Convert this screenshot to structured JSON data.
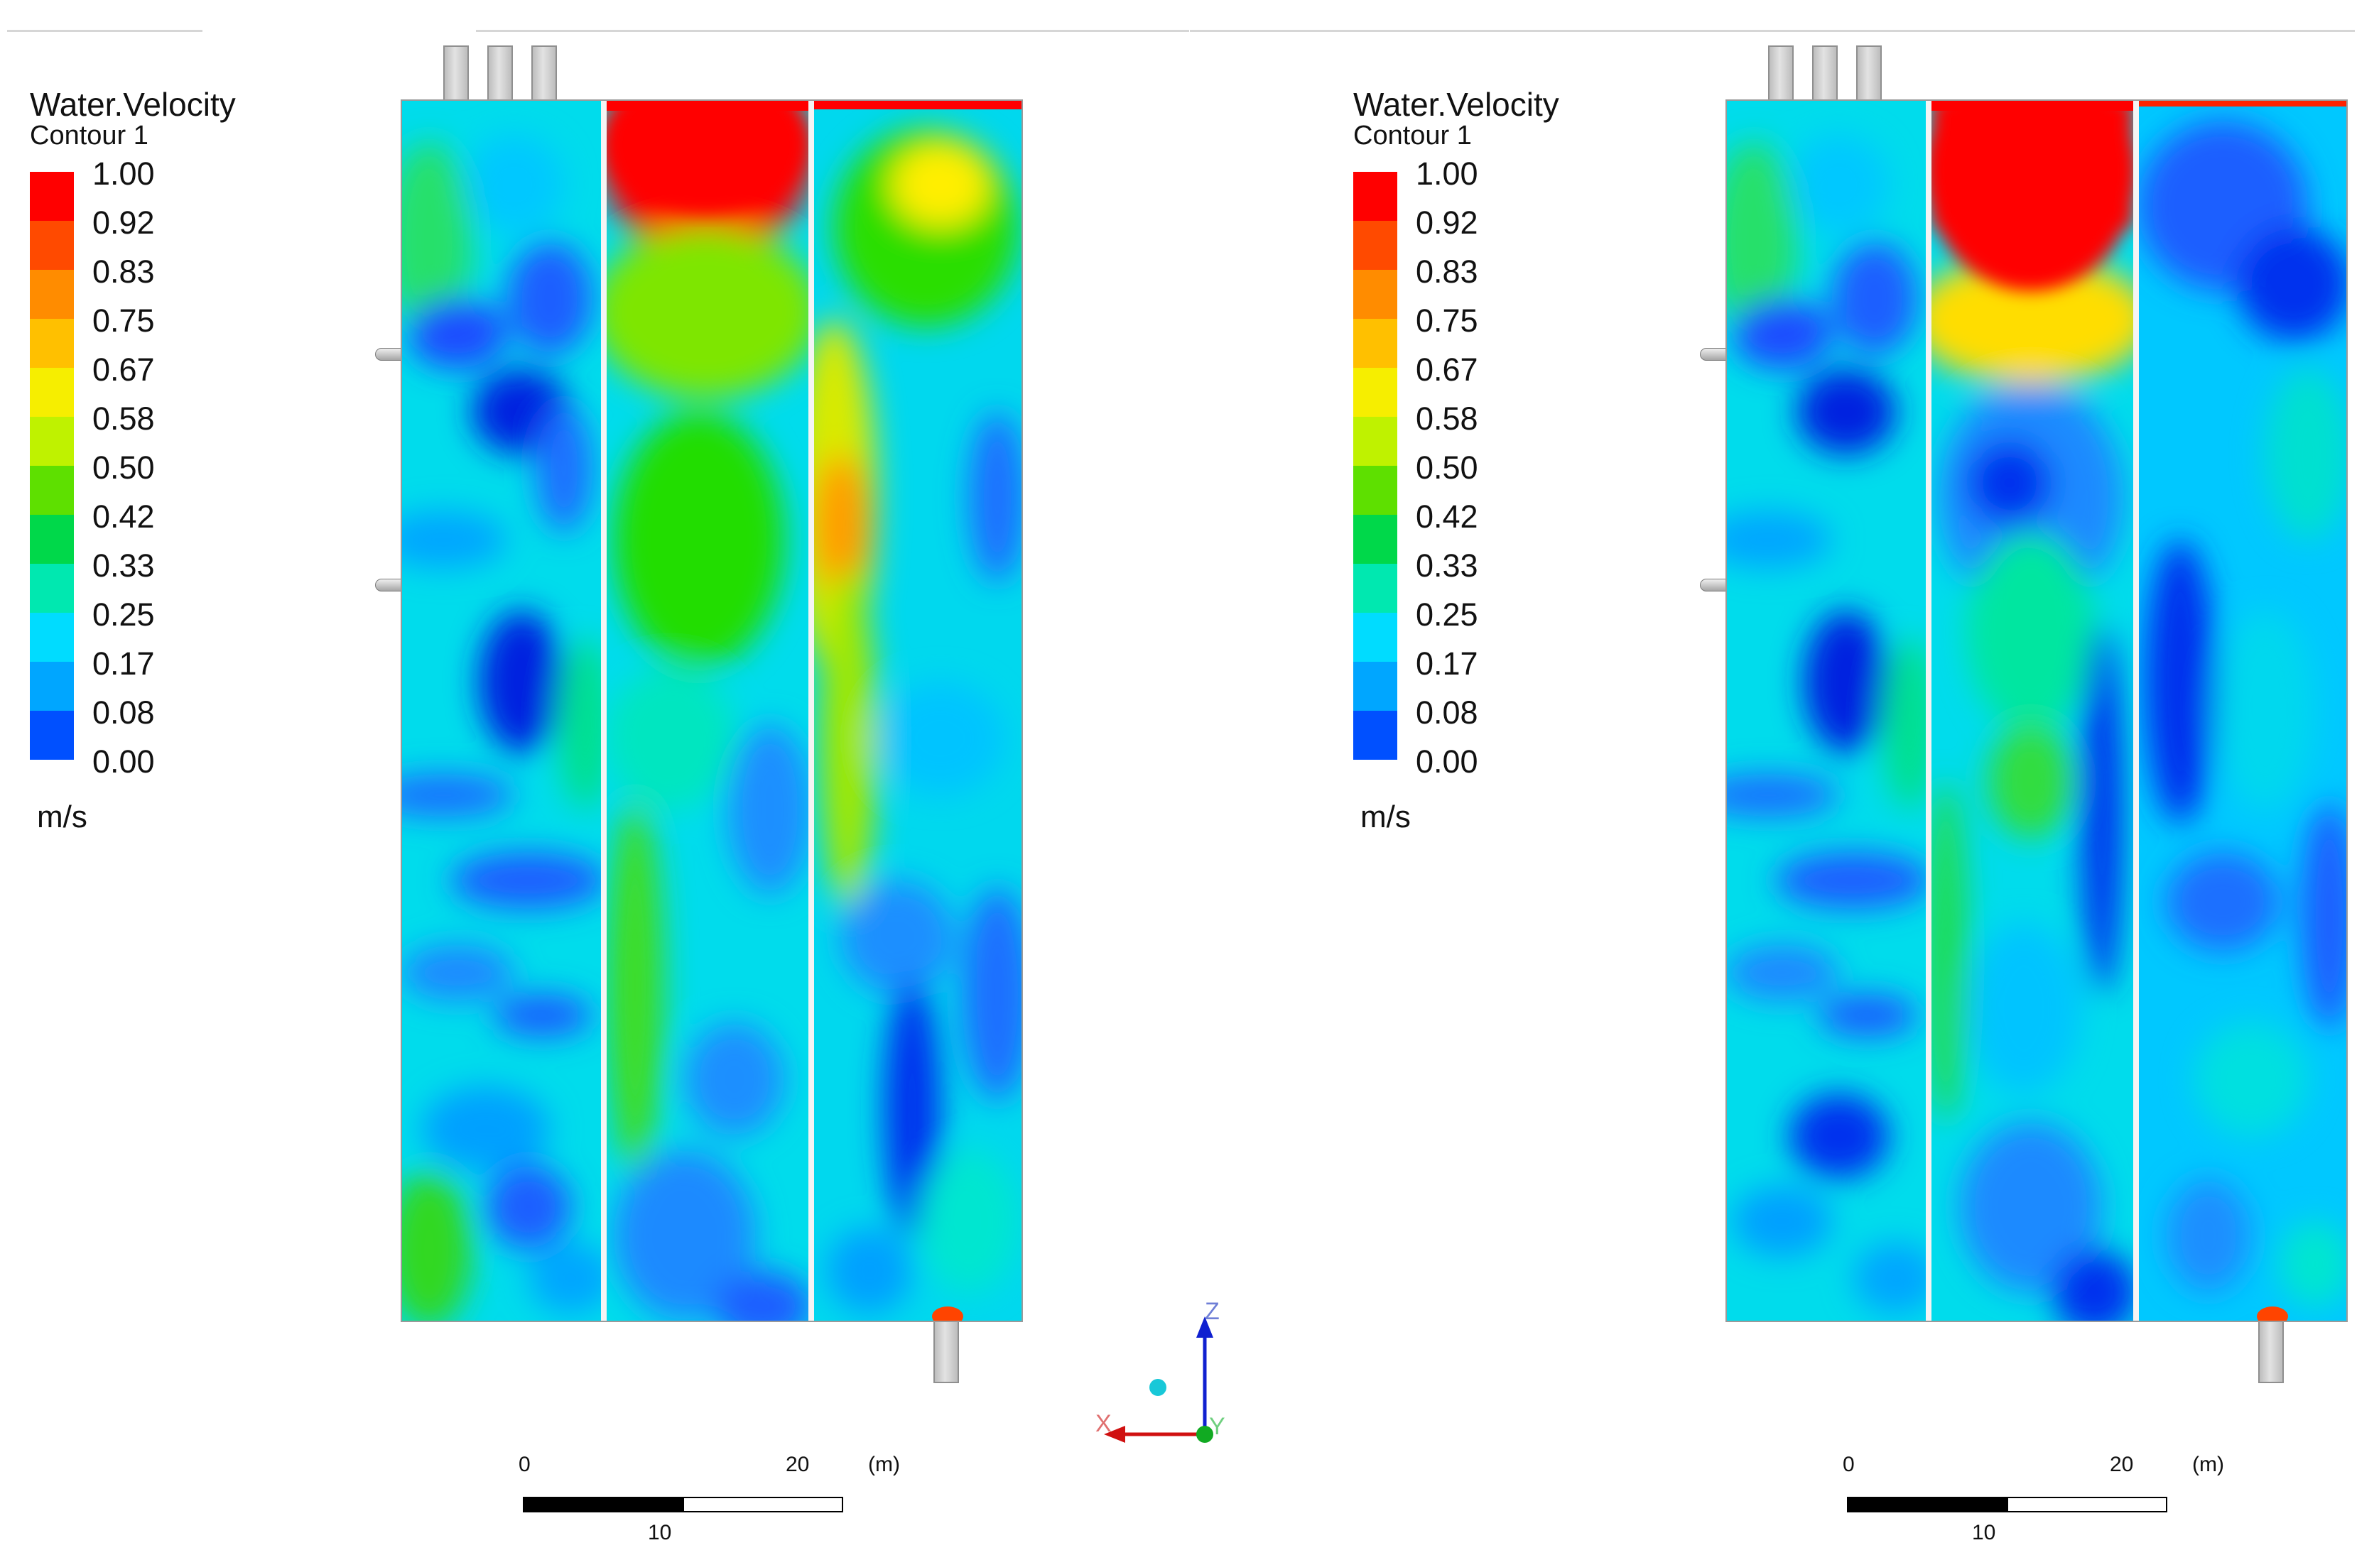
{
  "figure": {
    "panels": [
      {
        "id": "left",
        "legend": {
          "title": "Water.Velocity",
          "subtitle": "Contour 1",
          "units": "m/s",
          "ticks": [
            "1.00",
            "0.92",
            "0.83",
            "0.75",
            "0.67",
            "0.58",
            "0.50",
            "0.42",
            "0.33",
            "0.25",
            "0.17",
            "0.08",
            "0.00"
          ]
        },
        "scale_bar": {
          "label_start": "0",
          "label_mid": "10",
          "label_end": "20",
          "unit": "(m)"
        }
      },
      {
        "id": "right",
        "legend": {
          "title": "Water.Velocity",
          "subtitle": "Contour 1",
          "units": "m/s",
          "ticks": [
            "1.00",
            "0.92",
            "0.83",
            "0.75",
            "0.67",
            "0.58",
            "0.50",
            "0.42",
            "0.33",
            "0.25",
            "0.17",
            "0.08",
            "0.00"
          ]
        },
        "scale_bar": {
          "label_start": "0",
          "label_mid": "10",
          "label_end": "20",
          "unit": "(m)"
        }
      }
    ],
    "axes_triad": {
      "z_label": "Z",
      "x_label": "X",
      "y_label": "Y"
    },
    "colormap": [
      "#ff0000",
      "#ff4400",
      "#ff8800",
      "#ffbb00",
      "#ffee00",
      "#ccff00",
      "#88ee00",
      "#22dd00",
      "#00e066",
      "#00eecc",
      "#00ddff",
      "#00aaff",
      "#1e6fff",
      "#0000ee"
    ]
  }
}
